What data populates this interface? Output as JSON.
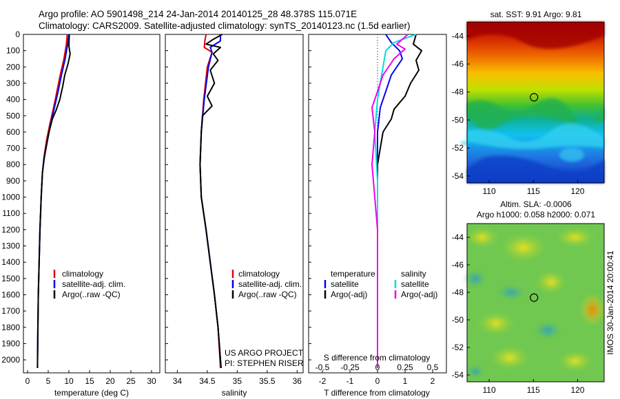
{
  "header": {
    "line1": "Argo profile: AO 5901498_214 24-Jan-2014 20140125_28 48.378S 115.071E",
    "line2": "Climatology: CARS2009. Satellite-adjusted climatology: synTS_20140123.nc (1.5d earlier)"
  },
  "colors": {
    "climatology": "#e00000",
    "satellite": "#0000ee",
    "argo": "#000000",
    "sat_salinity": "#00dddd",
    "argo_salinity": "#ee00ee"
  },
  "depth_axis": {
    "ylim": [
      0,
      2080
    ],
    "ticks": [
      0,
      100,
      200,
      300,
      400,
      500,
      600,
      700,
      800,
      900,
      1000,
      1100,
      1200,
      1300,
      1400,
      1500,
      1600,
      1700,
      1800,
      1900,
      2000
    ]
  },
  "chart_data": [
    {
      "type": "line",
      "xlabel": "temperature (deg C)",
      "xlim": [
        -1,
        32
      ],
      "xticks": [
        0,
        5,
        10,
        15,
        20,
        25,
        30
      ],
      "y_inverted": true,
      "legend": [
        "climatology",
        "satellite-adj. clim.",
        "Argo(..raw -QC)"
      ],
      "series": [
        {
          "name": "climatology",
          "color": "#e00000",
          "points": [
            [
              9.6,
              0
            ],
            [
              9.4,
              60
            ],
            [
              8.8,
              150
            ],
            [
              7.9,
              250
            ],
            [
              7.1,
              350
            ],
            [
              6.3,
              450
            ],
            [
              5.4,
              550
            ],
            [
              4.6,
              650
            ],
            [
              4.0,
              750
            ],
            [
              3.6,
              850
            ],
            [
              3.3,
              1000
            ],
            [
              3.0,
              1200
            ],
            [
              2.8,
              1400
            ],
            [
              2.6,
              1600
            ],
            [
              2.5,
              1800
            ],
            [
              2.4,
              2050
            ]
          ]
        },
        {
          "name": "satellite-adj. clim.",
          "color": "#0000ee",
          "points": [
            [
              10.0,
              0
            ],
            [
              9.7,
              60
            ],
            [
              9.1,
              150
            ],
            [
              8.2,
              250
            ],
            [
              7.4,
              350
            ],
            [
              6.5,
              450
            ],
            [
              5.6,
              550
            ],
            [
              4.8,
              650
            ],
            [
              4.1,
              750
            ],
            [
              3.6,
              850
            ],
            [
              3.3,
              1000
            ],
            [
              3.0,
              1200
            ],
            [
              2.8,
              1400
            ],
            [
              2.6,
              1600
            ],
            [
              2.5,
              1800
            ],
            [
              2.4,
              2050
            ]
          ]
        },
        {
          "name": "Argo(..raw -QC)",
          "color": "#000000",
          "points": [
            [
              10.1,
              0
            ],
            [
              10.0,
              70
            ],
            [
              10.3,
              120
            ],
            [
              9.8,
              180
            ],
            [
              9.0,
              250
            ],
            [
              8.5,
              320
            ],
            [
              7.8,
              400
            ],
            [
              7.0,
              460
            ],
            [
              6.0,
              520
            ],
            [
              5.2,
              600
            ],
            [
              4.6,
              680
            ],
            [
              4.0,
              760
            ],
            [
              3.6,
              850
            ],
            [
              3.3,
              1000
            ],
            [
              3.0,
              1200
            ],
            [
              2.8,
              1400
            ],
            [
              2.6,
              1600
            ],
            [
              2.5,
              1800
            ],
            [
              2.4,
              2050
            ]
          ]
        }
      ]
    },
    {
      "type": "line",
      "xlabel": "salinity",
      "xlim": [
        33.8,
        36.1
      ],
      "xticks": [
        34,
        34.5,
        35,
        35.5,
        36
      ],
      "y_inverted": true,
      "legend": [
        "climatology",
        "satellite-adj. clim.",
        "Argo(..raw -QC)"
      ],
      "annotations": [
        "US ARGO PROJECT",
        "PI: STEPHEN RISER"
      ],
      "series": [
        {
          "name": "climatology",
          "color": "#e00000",
          "points": [
            [
              34.48,
              0
            ],
            [
              34.46,
              40
            ],
            [
              34.45,
              80
            ],
            [
              34.58,
              110
            ],
            [
              34.5,
              200
            ],
            [
              34.44,
              400
            ],
            [
              34.4,
              600
            ],
            [
              34.38,
              800
            ],
            [
              34.4,
              1000
            ],
            [
              34.48,
              1200
            ],
            [
              34.55,
              1400
            ],
            [
              34.62,
              1600
            ],
            [
              34.68,
              1800
            ],
            [
              34.72,
              2050
            ]
          ]
        },
        {
          "name": "satellite-adj. clim.",
          "color": "#0000ee",
          "points": [
            [
              34.72,
              0
            ],
            [
              34.72,
              40
            ],
            [
              34.55,
              80
            ],
            [
              34.58,
              110
            ],
            [
              34.52,
              200
            ],
            [
              34.45,
              400
            ],
            [
              34.4,
              600
            ],
            [
              34.38,
              800
            ],
            [
              34.4,
              1000
            ],
            [
              34.48,
              1200
            ],
            [
              34.55,
              1400
            ],
            [
              34.62,
              1600
            ],
            [
              34.68,
              1800
            ],
            [
              34.73,
              2050
            ]
          ]
        },
        {
          "name": "Argo(..raw -QC)",
          "color": "#000000",
          "points": [
            [
              34.75,
              0
            ],
            [
              34.6,
              30
            ],
            [
              34.48,
              60
            ],
            [
              34.72,
              80
            ],
            [
              34.6,
              120
            ],
            [
              34.68,
              160
            ],
            [
              34.55,
              220
            ],
            [
              34.62,
              300
            ],
            [
              34.5,
              380
            ],
            [
              34.58,
              440
            ],
            [
              34.42,
              500
            ],
            [
              34.4,
              600
            ],
            [
              34.38,
              800
            ],
            [
              34.4,
              1000
            ],
            [
              34.48,
              1200
            ],
            [
              34.55,
              1400
            ],
            [
              34.62,
              1600
            ],
            [
              34.68,
              1800
            ],
            [
              34.73,
              2050
            ]
          ]
        }
      ]
    },
    {
      "type": "line",
      "xlabel": "T difference from climatology",
      "x2label": "S difference from climatology",
      "xlim": [
        -2.5,
        2.5
      ],
      "xticks": [
        -2,
        -1,
        0,
        1,
        2
      ],
      "x2ticks": [
        -0.5,
        -0.25,
        0,
        0.25,
        0.5
      ],
      "y_inverted": true,
      "legend_left_title": "temperature",
      "legend_right_title": "salinity",
      "legend": [
        "satellite",
        "Argo(-adj)",
        "satellite",
        "Argo(-adj)"
      ],
      "series": [
        {
          "name": "satellite (T)",
          "color": "#0000ee",
          "points": [
            [
              0.3,
              0
            ],
            [
              0.5,
              50
            ],
            [
              0.8,
              100
            ],
            [
              0.9,
              150
            ],
            [
              0.5,
              250
            ],
            [
              0.3,
              350
            ],
            [
              0.1,
              450
            ],
            [
              0,
              600
            ],
            [
              0,
              900
            ],
            [
              0,
              1300
            ],
            [
              0,
              2050
            ]
          ]
        },
        {
          "name": "Argo(-adj) (T)",
          "color": "#000000",
          "points": [
            [
              1.4,
              0
            ],
            [
              1.3,
              60
            ],
            [
              1.6,
              100
            ],
            [
              1.4,
              160
            ],
            [
              1.5,
              220
            ],
            [
              1.2,
              300
            ],
            [
              1.0,
              380
            ],
            [
              0.6,
              460
            ],
            [
              0.5,
              520
            ],
            [
              0.2,
              600
            ],
            [
              0.1,
              700
            ],
            [
              0,
              800
            ],
            [
              0,
              1000
            ],
            [
              0,
              1200
            ],
            [
              0,
              2050
            ]
          ]
        },
        {
          "name": "satellite (S)",
          "color": "#00dddd",
          "points": [
            [
              1.4,
              0
            ],
            [
              0.6,
              50
            ],
            [
              0.3,
              100
            ],
            [
              0.2,
              200
            ],
            [
              0,
              400
            ],
            [
              -0.1,
              600
            ],
            [
              0,
              900
            ],
            [
              0,
              1300
            ],
            [
              0,
              2050
            ]
          ]
        },
        {
          "name": "Argo(-adj) (S)",
          "color": "#ee00ee",
          "points": [
            [
              1.1,
              0
            ],
            [
              0.7,
              60
            ],
            [
              1.0,
              90
            ],
            [
              0.6,
              150
            ],
            [
              0.2,
              250
            ],
            [
              0,
              350
            ],
            [
              -0.2,
              450
            ],
            [
              -0.1,
              600
            ],
            [
              -0.2,
              800
            ],
            [
              -0.1,
              1000
            ],
            [
              0,
              1200
            ],
            [
              0,
              2050
            ]
          ]
        }
      ]
    },
    {
      "type": "heatmap",
      "title": "sat. SST: 9.91  Argo: 9.81",
      "xlim": [
        107.5,
        123
      ],
      "ylim": [
        -54.5,
        -43
      ],
      "xticks": [
        110,
        115,
        120
      ],
      "yticks": [
        -54,
        -52,
        -50,
        -48,
        -46,
        -44
      ],
      "marker": {
        "lon": 115.071,
        "lat": -48.378
      }
    },
    {
      "type": "heatmap",
      "title_line1": "Altim. SLA: -0.0006",
      "title_line2": "Argo h1000: 0.058 h2000: 0.071",
      "xlim": [
        107.5,
        123
      ],
      "ylim": [
        -54.5,
        -43
      ],
      "xticks": [
        110,
        115,
        120
      ],
      "yticks": [
        -54,
        -52,
        -50,
        -48,
        -46,
        -44
      ],
      "marker": {
        "lon": 115.071,
        "lat": -48.378
      },
      "side_text": "IMOS 30-Jan-2014 20:00:41"
    }
  ]
}
